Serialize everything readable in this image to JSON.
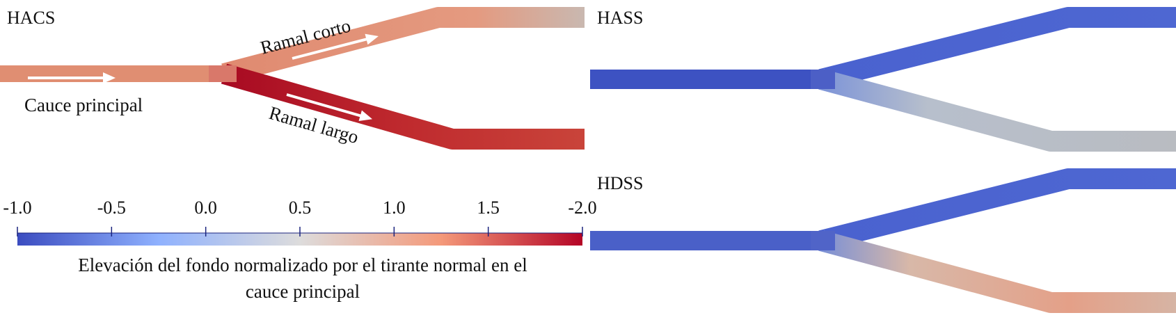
{
  "panels": [
    {
      "label": "HACS",
      "annotations": {
        "main": "Cauce principal",
        "short": "Ramal corto",
        "long": "Ramal largo"
      }
    },
    {
      "label": "HASS"
    },
    {
      "label": "HDSS"
    }
  ],
  "colorbar": {
    "ticks": [
      "-1.0",
      "-0.5",
      "0.0",
      "0.5",
      "1.0",
      "1.5",
      "-2.0"
    ],
    "title_line1": "Elevación del fondo normalizado por el tirante normal en el",
    "title_line2": "cauce principal",
    "colors": [
      "#3b4cc0",
      "#8fb1fe",
      "#dddcdc",
      "#f4997a",
      "#b40426"
    ]
  }
}
